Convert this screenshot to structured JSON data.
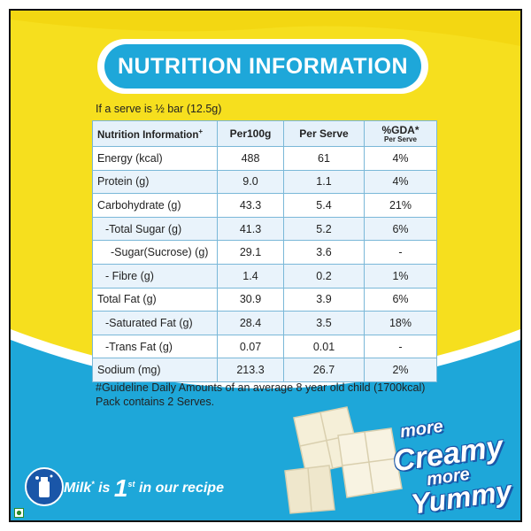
{
  "title": "NUTRITION INFORMATION",
  "serve_note": "If a serve is ½ bar (12.5g)",
  "table": {
    "headers": {
      "name": "Nutrition Information",
      "name_mark": "+",
      "per100g": "Per100g",
      "per_serve": "Per Serve",
      "gda": "%GDA*",
      "gda_sub": "Per Serve"
    },
    "rows": [
      {
        "name": "Energy (kcal)",
        "per100g": "488",
        "per_serve": "61",
        "gda": "4%"
      },
      {
        "name": "Protein (g)",
        "per100g": "9.0",
        "per_serve": "1.1",
        "gda": "4%"
      },
      {
        "name": "Carbohydrate (g)",
        "per100g": "43.3",
        "per_serve": "5.4",
        "gda": "21%"
      },
      {
        "name": "-Total Sugar (g)",
        "per100g": "41.3",
        "per_serve": "5.2",
        "gda": "6%"
      },
      {
        "name": "-Sugar(Sucrose) (g)",
        "per100g": "29.1",
        "per_serve": "3.6",
        "gda": "-"
      },
      {
        "name": "- Fibre (g)",
        "per100g": "1.4",
        "per_serve": "0.2",
        "gda": "1%"
      },
      {
        "name": "Total Fat (g)",
        "per100g": "30.9",
        "per_serve": "3.9",
        "gda": "6%"
      },
      {
        "name": "-Saturated Fat (g)",
        "per100g": "28.4",
        "per_serve": "3.5",
        "gda": "18%"
      },
      {
        "name": "-Trans Fat (g)",
        "per100g": "0.07",
        "per_serve": "0.01",
        "gda": "-"
      },
      {
        "name": "Sodium (mg)",
        "per100g": "213.3",
        "per_serve": "26.7",
        "gda": "2%"
      }
    ]
  },
  "footnote": {
    "line1": "#Guideline Daily Amounts of an average 8 year old child (1700kcal)",
    "line2": "Pack contains 2 Serves."
  },
  "milk_badge": {
    "text1": "Milk",
    "mark": "*",
    "text2": "is",
    "big": "1",
    "sup": "st",
    "text3": "in our recipe"
  },
  "tagline": {
    "line1": "more",
    "line2": "Creamy",
    "line3": "more",
    "line4": "Yummy"
  },
  "colors": {
    "yellow": "#f6df1e",
    "blue": "#1ea7d9",
    "dark_blue": "#1a56a8",
    "table_border": "#7ab8d8"
  },
  "icons": [
    "milk-can-icon",
    "veg-mark-icon",
    "chocolate-pieces-image"
  ]
}
